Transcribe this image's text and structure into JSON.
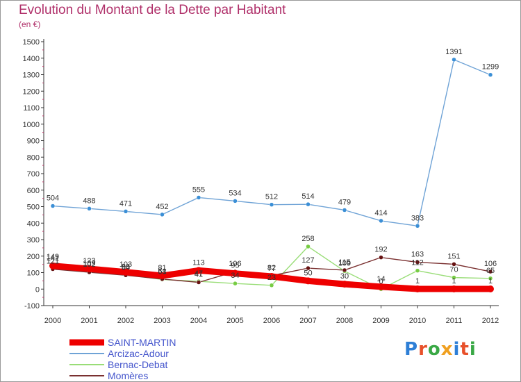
{
  "title": "Evolution du Montant de la Dette par Habitant",
  "unit_label": "(en €)",
  "logo": {
    "text": "Proxiti",
    "colors": [
      "#2e7fd6",
      "#e8502a",
      "#39a845",
      "#f0a020",
      "#2e7fd6",
      "#e8502a",
      "#39a845"
    ]
  },
  "chart_data": {
    "type": "line",
    "title": "Evolution du Montant de la Dette par Habitant",
    "ylabel": "(en €)",
    "xlabel": "",
    "x": [
      "2000",
      "2001",
      "2002",
      "2003",
      "2004",
      "2005",
      "2006",
      "2007",
      "2008",
      "2009",
      "2010",
      "2011",
      "2012"
    ],
    "ylim": [
      -100,
      1500
    ],
    "yticks": [
      -100,
      0,
      100,
      200,
      300,
      400,
      500,
      600,
      700,
      800,
      900,
      1000,
      1100,
      1200,
      1300,
      1400,
      1500
    ],
    "grid": false,
    "legend_position": "bottom-left",
    "series": [
      {
        "name": "SAINT-MARTIN",
        "color": "#ee0000",
        "marker_color": "#ee0000",
        "width": "thick",
        "values": [
          141,
          123,
          103,
          81,
          113,
          95,
          77,
          50,
          30,
          14,
          1,
          1,
          1
        ]
      },
      {
        "name": "Arcizac-Adour",
        "color": "#6fa3d6",
        "marker_color": "#3b8fd6",
        "width": "thin",
        "values": [
          504,
          488,
          471,
          452,
          555,
          534,
          512,
          514,
          479,
          414,
          383,
          1391,
          1299
        ]
      },
      {
        "name": "Bernac-Debat",
        "color": "#99dd77",
        "marker_color": "#77cc44",
        "width": "thin",
        "values": [
          149,
          109,
          88,
          58,
          47,
          34,
          23,
          258,
          109,
          0,
          112,
          70,
          65
        ]
      },
      {
        "name": "Momères",
        "color": "#7a3030",
        "marker_color": "#661111",
        "width": "thin",
        "values": [
          121,
          102,
          84,
          61,
          41,
          106,
          82,
          127,
          115,
          192,
          163,
          151,
          106
        ]
      }
    ]
  }
}
